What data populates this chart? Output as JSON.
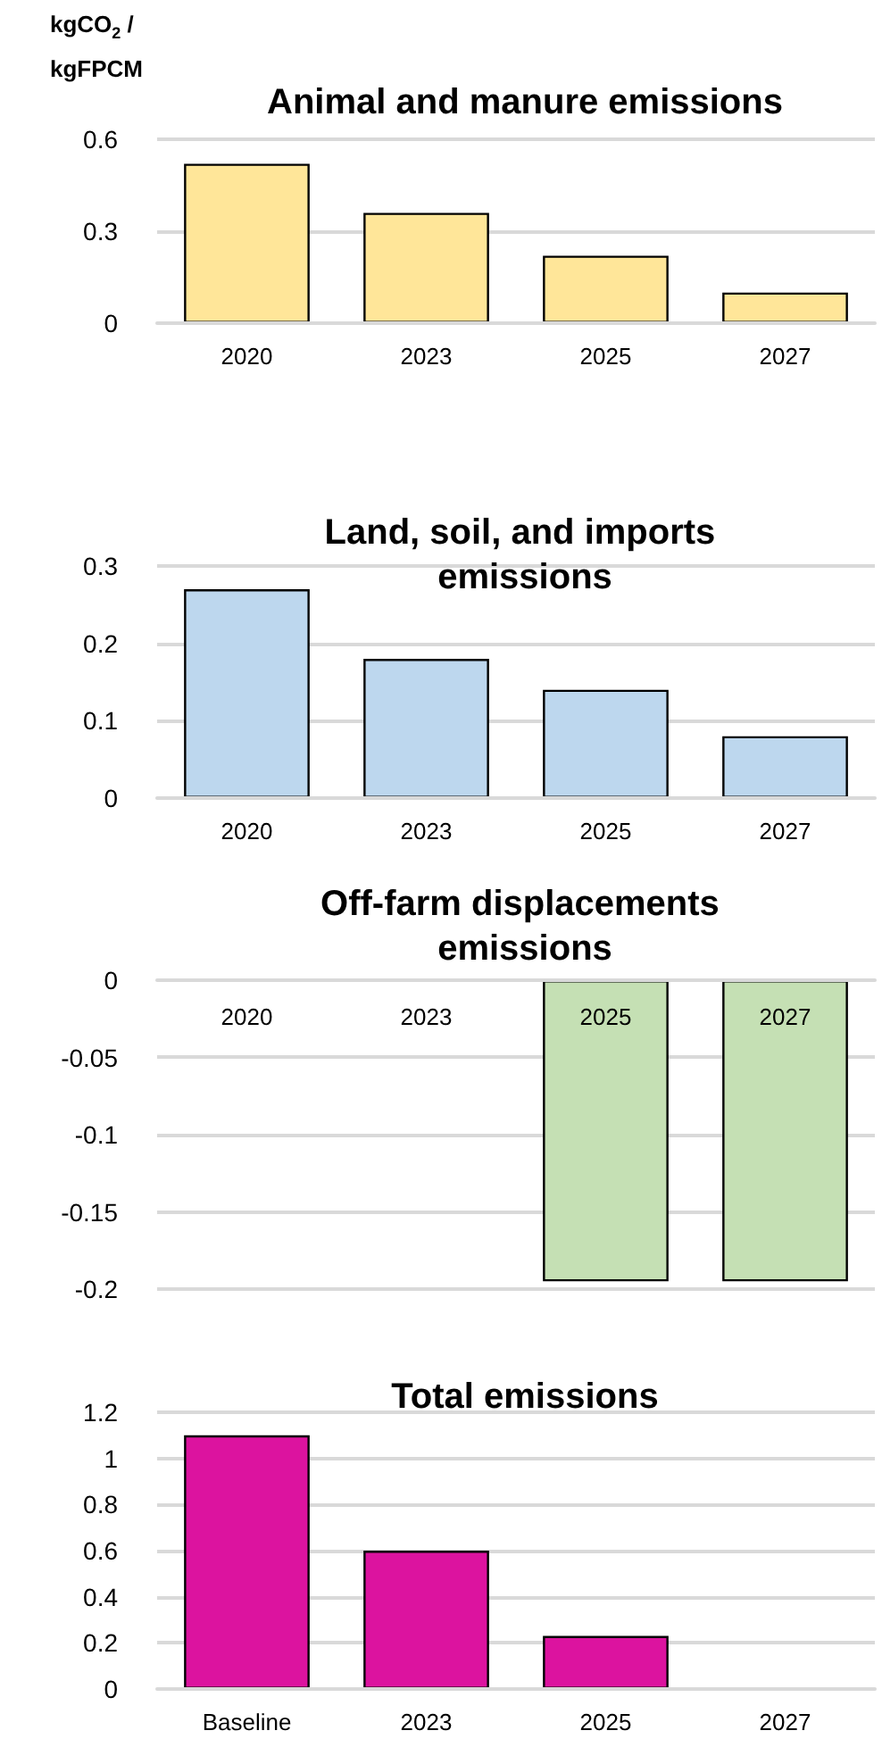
{
  "chart_data": [
    {
      "type": "bar",
      "title": "Animal and manure emissions",
      "ylabel": "kgCO$_{2}$ / kgFPCM",
      "categories": [
        "2020",
        "2023",
        "2025",
        "2027"
      ],
      "values": [
        0.52,
        0.36,
        0.22,
        0.1
      ],
      "color": "#ffe699",
      "ylim": [
        0,
        0.6
      ],
      "yticks": [
        0,
        0.3,
        0.6
      ],
      "grid": "y"
    },
    {
      "type": "bar",
      "title": "Land, soil, and imports emissions",
      "categories": [
        "2020",
        "2023",
        "2025",
        "2027"
      ],
      "values": [
        0.27,
        0.18,
        0.14,
        0.08
      ],
      "color": "#bdd7ee",
      "ylim": [
        0,
        0.3
      ],
      "yticks": [
        0,
        0.1,
        0.2,
        0.3
      ],
      "grid": "y"
    },
    {
      "type": "bar",
      "title": "Off-farm displacements emissions",
      "categories": [
        "2020",
        "2023",
        "2025",
        "2027"
      ],
      "values": [
        null,
        null,
        -0.195,
        -0.195
      ],
      "color": "#c5e0b4",
      "ylim": [
        -0.2,
        0
      ],
      "yticks": [
        -0.2,
        -0.15,
        -0.1,
        -0.05,
        0
      ],
      "grid": "y"
    },
    {
      "type": "bar",
      "title": "Total emissions",
      "categories": [
        "Baseline",
        "2023",
        "2025",
        "2027"
      ],
      "values": [
        1.1,
        0.6,
        0.23,
        null
      ],
      "color": "#dc139f",
      "ylim": [
        0,
        1.2
      ],
      "yticks": [
        0,
        0.2,
        0.4,
        0.6,
        0.8,
        1,
        1.2
      ],
      "grid": "y"
    }
  ]
}
